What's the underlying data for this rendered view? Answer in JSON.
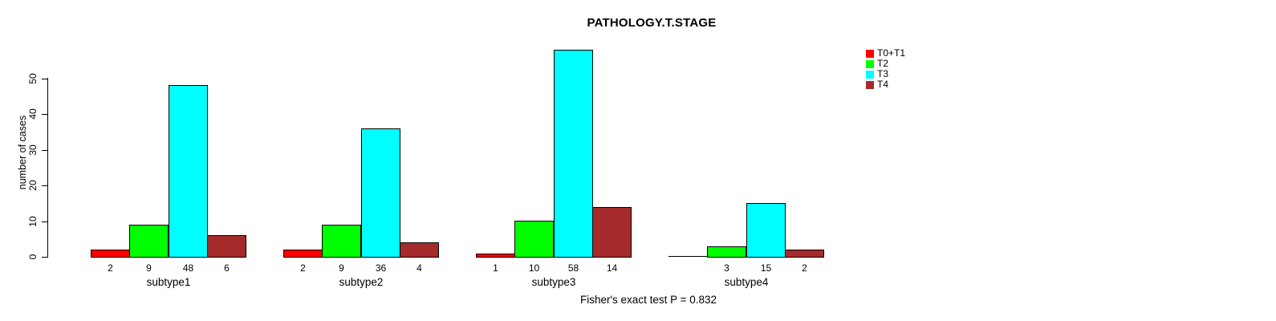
{
  "chart_data": {
    "type": "bar",
    "title": "PATHOLOGY.T.STAGE",
    "ylabel": "number of cases",
    "footer": "Fisher's exact test P = 0.832",
    "categories": [
      "subtype1",
      "subtype2",
      "subtype3",
      "subtype4"
    ],
    "series": [
      {
        "name": "T0+T1",
        "color": "#ff0000",
        "values": [
          2,
          2,
          1,
          0
        ]
      },
      {
        "name": "T2",
        "color": "#00ff00",
        "values": [
          9,
          9,
          10,
          3
        ]
      },
      {
        "name": "T3",
        "color": "#00ffff",
        "values": [
          48,
          36,
          58,
          15
        ]
      },
      {
        "name": "T4",
        "color": "#a52a2a",
        "values": [
          6,
          4,
          14,
          2
        ]
      }
    ],
    "bar_labels": [
      [
        "2",
        "9",
        "48",
        "6"
      ],
      [
        "2",
        "9",
        "36",
        "4"
      ],
      [
        "1",
        "10",
        "58",
        "14"
      ],
      [
        "",
        "3",
        "15",
        "2"
      ]
    ],
    "yticks": [
      0,
      10,
      20,
      30,
      40,
      50
    ],
    "ylim": [
      0,
      58
    ],
    "grid": false,
    "legend_position": "top-right",
    "bar_border_color": "#000000",
    "background_color": "#ffffff"
  }
}
